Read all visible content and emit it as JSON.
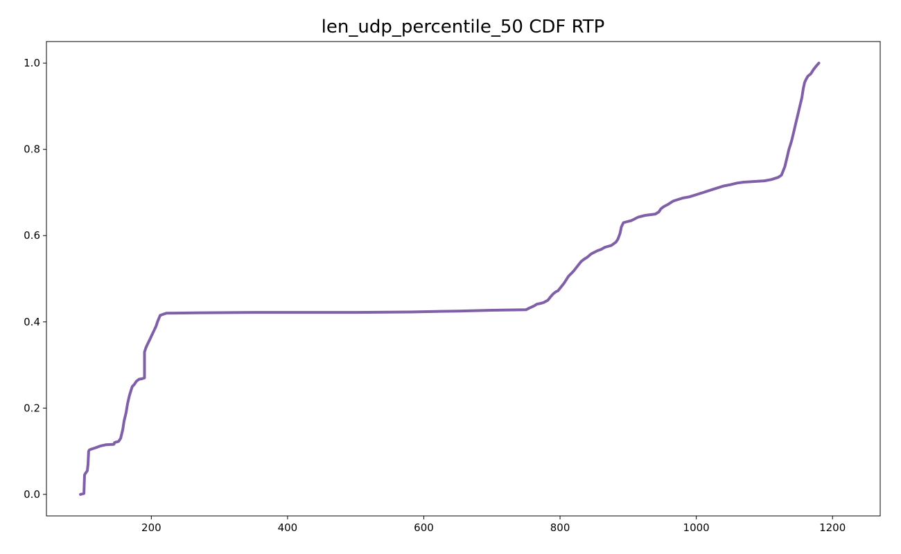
{
  "chart_data": {
    "type": "line",
    "title": "len_udp_percentile_50 CDF RTP",
    "xlabel": "",
    "ylabel": "",
    "xlim": [
      46,
      1270
    ],
    "ylim": [
      -0.05,
      1.05
    ],
    "grid": false,
    "legend": "none",
    "xticks": [
      200,
      400,
      600,
      800,
      1000,
      1200
    ],
    "yticks": [
      0.0,
      0.2,
      0.4,
      0.6,
      0.8,
      1.0
    ],
    "line_color": "#7f5fa6",
    "series": [
      {
        "x": [
          96,
          101,
          102,
          103,
          106,
          107,
          108,
          109,
          109,
          112,
          118,
          125,
          133,
          145,
          146,
          152,
          155,
          158,
          160,
          163,
          165,
          168,
          172,
          175,
          178,
          182,
          186,
          190,
          190,
          192,
          195,
          198,
          201,
          204,
          207,
          209,
          213,
          218,
          222,
          265,
          350,
          500,
          580,
          650,
          700,
          750,
          755,
          762,
          766,
          772,
          776,
          782,
          786,
          790,
          794,
          797,
          801,
          806,
          812,
          815,
          817,
          820,
          826,
          831,
          835,
          840,
          846,
          855,
          860,
          866,
          875,
          882,
          885,
          888,
          890,
          893,
          905,
          915,
          925,
          940,
          945,
          948,
          952,
          958,
          962,
          966,
          972,
          980,
          990,
          1000,
          1010,
          1020,
          1030,
          1040,
          1050,
          1060,
          1070,
          1080,
          1090,
          1100,
          1110,
          1120,
          1125,
          1130,
          1133,
          1136,
          1138,
          1140,
          1143,
          1146,
          1149,
          1152,
          1155,
          1157,
          1159,
          1161,
          1164,
          1168,
          1172,
          1176,
          1180
        ],
        "y": [
          0.0,
          0.002,
          0.045,
          0.048,
          0.055,
          0.07,
          0.1,
          0.102,
          0.103,
          0.105,
          0.108,
          0.112,
          0.115,
          0.116,
          0.12,
          0.123,
          0.13,
          0.15,
          0.17,
          0.19,
          0.21,
          0.23,
          0.25,
          0.255,
          0.262,
          0.267,
          0.268,
          0.27,
          0.33,
          0.34,
          0.35,
          0.36,
          0.37,
          0.38,
          0.39,
          0.4,
          0.415,
          0.418,
          0.42,
          0.421,
          0.422,
          0.422,
          0.423,
          0.425,
          0.427,
          0.428,
          0.432,
          0.437,
          0.441,
          0.443,
          0.445,
          0.45,
          0.458,
          0.465,
          0.47,
          0.472,
          0.48,
          0.49,
          0.505,
          0.51,
          0.513,
          0.518,
          0.53,
          0.54,
          0.545,
          0.55,
          0.558,
          0.565,
          0.568,
          0.573,
          0.577,
          0.585,
          0.592,
          0.605,
          0.62,
          0.63,
          0.635,
          0.643,
          0.647,
          0.65,
          0.655,
          0.662,
          0.667,
          0.672,
          0.676,
          0.68,
          0.683,
          0.687,
          0.69,
          0.695,
          0.7,
          0.705,
          0.71,
          0.715,
          0.718,
          0.722,
          0.724,
          0.725,
          0.726,
          0.727,
          0.73,
          0.735,
          0.74,
          0.76,
          0.78,
          0.8,
          0.81,
          0.82,
          0.84,
          0.86,
          0.88,
          0.9,
          0.92,
          0.94,
          0.955,
          0.962,
          0.97,
          0.975,
          0.985,
          0.993,
          1.0
        ]
      }
    ]
  }
}
